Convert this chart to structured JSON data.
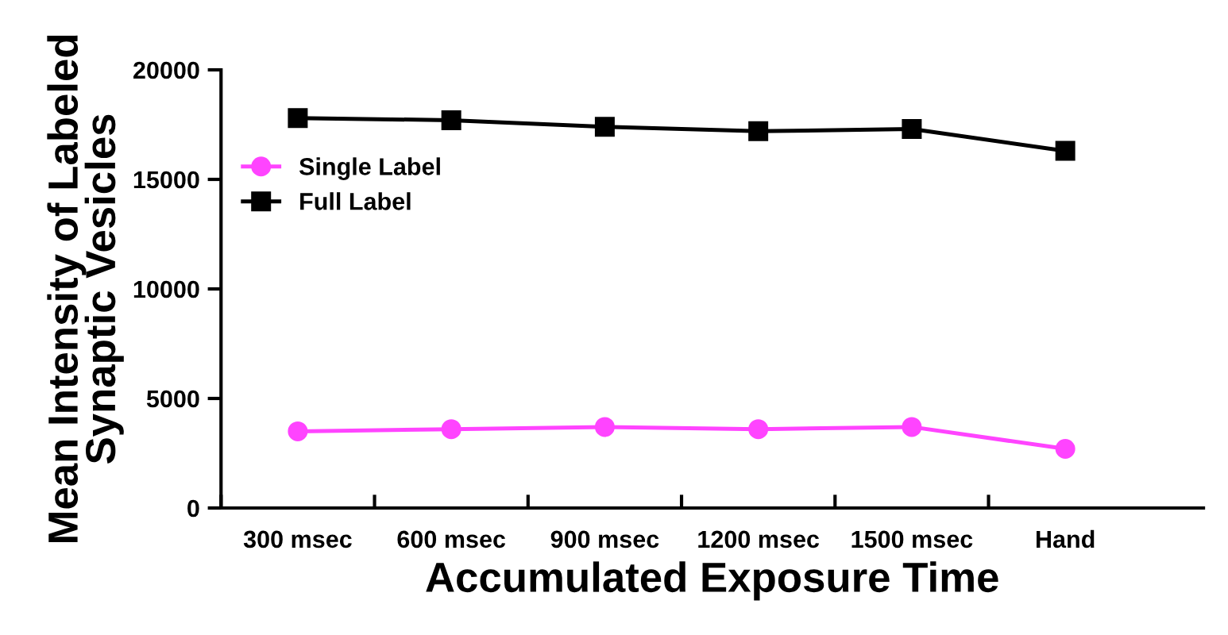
{
  "chart_data": {
    "type": "line",
    "xlabel": "Accumulated Exposure Time",
    "ylabel": "Mean Intensity of Labeled\nSynaptic Vesicles",
    "categories": [
      "300 msec",
      "600 msec",
      "900 msec",
      "1200 msec",
      "1500 msec",
      "Hand"
    ],
    "series": [
      {
        "name": "Single Label",
        "color": "#ff44ff",
        "marker": "circle",
        "values": [
          3500,
          3600,
          3700,
          3600,
          3700,
          2700
        ]
      },
      {
        "name": "Full Label",
        "color": "#000000",
        "marker": "square",
        "values": [
          17800,
          17700,
          17400,
          17200,
          17300,
          16300
        ]
      }
    ],
    "ylim": [
      0,
      20000
    ],
    "yticks": [
      0,
      5000,
      10000,
      15000,
      20000
    ],
    "grid": false,
    "legend": "top left"
  }
}
